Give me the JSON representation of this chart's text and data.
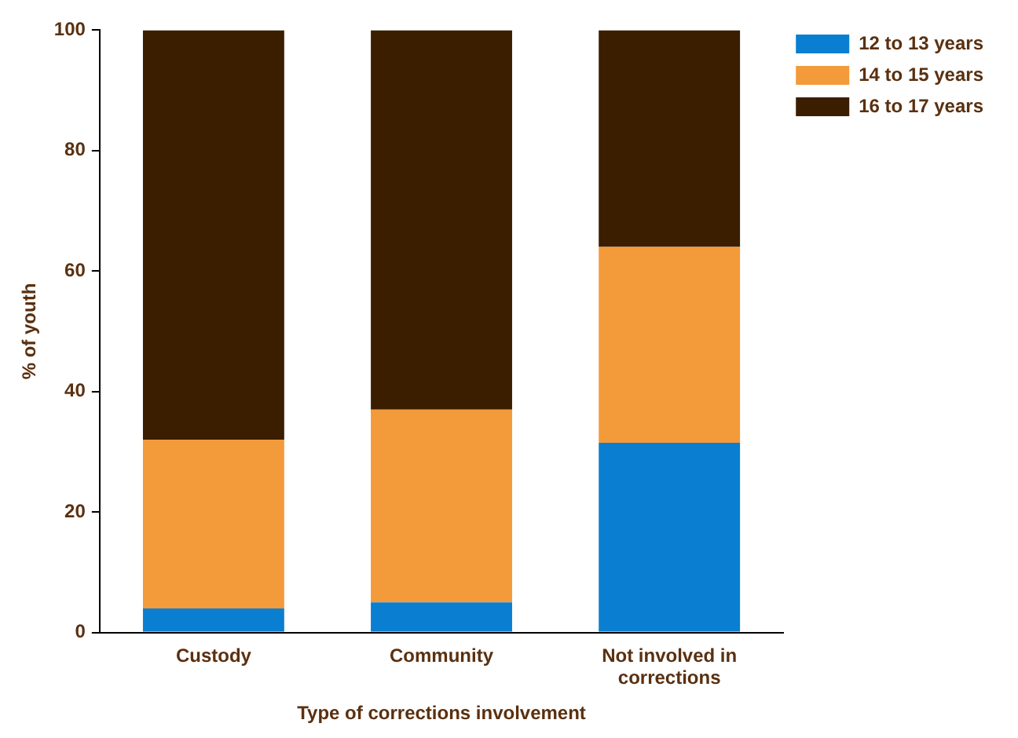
{
  "chart_data": {
    "type": "bar",
    "stacked": true,
    "xlabel": "Type of corrections involvement",
    "ylabel": "% of youth",
    "categories": [
      "Custody",
      "Community",
      "Not involved in corrections"
    ],
    "series": [
      {
        "name": "12 to 13 years",
        "color": "#0a7fd1",
        "values": [
          4,
          5,
          31.5
        ]
      },
      {
        "name": "14 to 15 years",
        "color": "#f39a3a",
        "values": [
          28,
          32,
          32.5
        ]
      },
      {
        "name": "16 to 17 years",
        "color": "#3b1e00",
        "values": [
          68,
          63,
          36
        ]
      }
    ],
    "ylim": [
      0,
      100
    ],
    "yticks": [
      0,
      20,
      40,
      60,
      80,
      100
    ],
    "grid": false,
    "legend": "top right"
  }
}
